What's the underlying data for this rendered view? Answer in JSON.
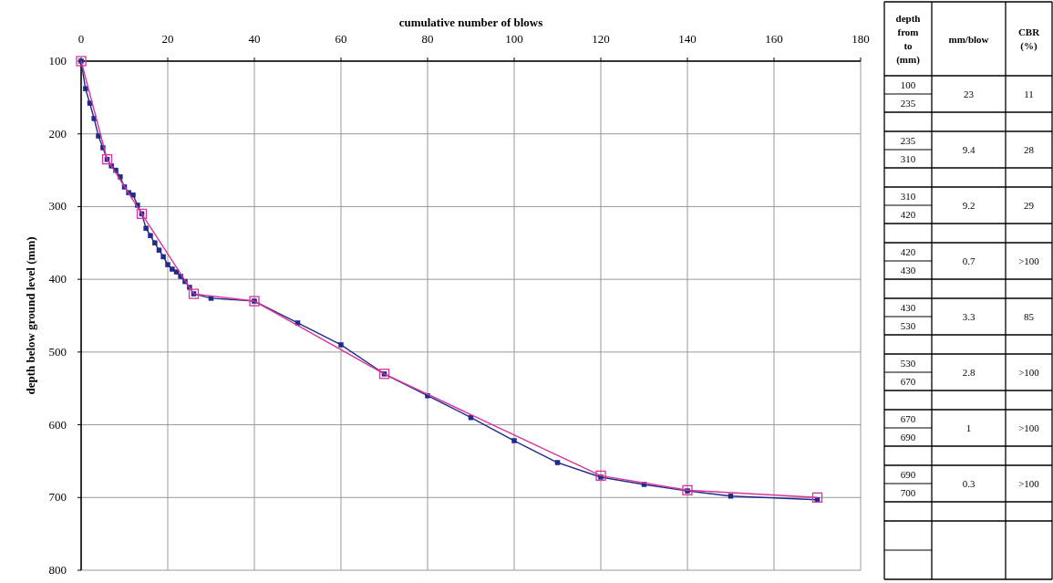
{
  "chart_data": [
    {
      "type": "line",
      "xlabel": "cumulative number of blows",
      "ylabel": "depth below ground level (mm)",
      "xlim": [
        0,
        180
      ],
      "xticks": [
        0,
        20,
        40,
        60,
        80,
        100,
        120,
        140,
        160,
        180
      ],
      "ylim": [
        800,
        100
      ],
      "yticks": [
        100,
        200,
        300,
        400,
        500,
        600,
        700,
        800
      ],
      "grid": true,
      "series": [
        {
          "color": "#1f2a8a",
          "marker": "square",
          "x": [
            0,
            1,
            2,
            3,
            4,
            5,
            6,
            7,
            8,
            9,
            10,
            11,
            12,
            13,
            14,
            15,
            16,
            17,
            18,
            19,
            20,
            21,
            22,
            23,
            24,
            25,
            26,
            30,
            40,
            50,
            60,
            70,
            80,
            90,
            100,
            110,
            120,
            130,
            140,
            150,
            170
          ],
          "values": [
            100,
            138,
            158,
            179,
            203,
            219,
            235,
            244,
            250,
            259,
            273,
            281,
            284,
            298,
            310,
            330,
            340,
            350,
            360,
            369,
            380,
            386,
            390,
            396,
            403,
            411,
            420,
            426,
            430,
            460,
            490,
            530,
            560,
            590,
            622,
            652,
            672,
            682,
            691,
            698,
            703
          ]
        },
        {
          "color": "#d8349a",
          "marker": "square",
          "x": [
            0,
            6,
            14,
            26,
            40,
            70,
            120,
            140,
            170
          ],
          "values": [
            100,
            235,
            310,
            420,
            430,
            530,
            670,
            690,
            700
          ]
        }
      ]
    },
    {
      "type": "other",
      "categories": [
        "depth from to (mm)",
        "mm/blow",
        "CBR (%)"
      ],
      "cell_labels": [
        [
          "100",
          "235",
          "23",
          "11"
        ],
        [
          "235",
          "310",
          "9.4",
          "28"
        ],
        [
          "310",
          "420",
          "9.2",
          "29"
        ],
        [
          "420",
          "430",
          "0.7",
          ">100"
        ],
        [
          "430",
          "530",
          "3.3",
          "85"
        ],
        [
          "530",
          "670",
          "2.8",
          ">100"
        ],
        [
          "670",
          "690",
          "1",
          ">100"
        ],
        [
          "690",
          "700",
          "0.3",
          ">100"
        ]
      ]
    }
  ]
}
